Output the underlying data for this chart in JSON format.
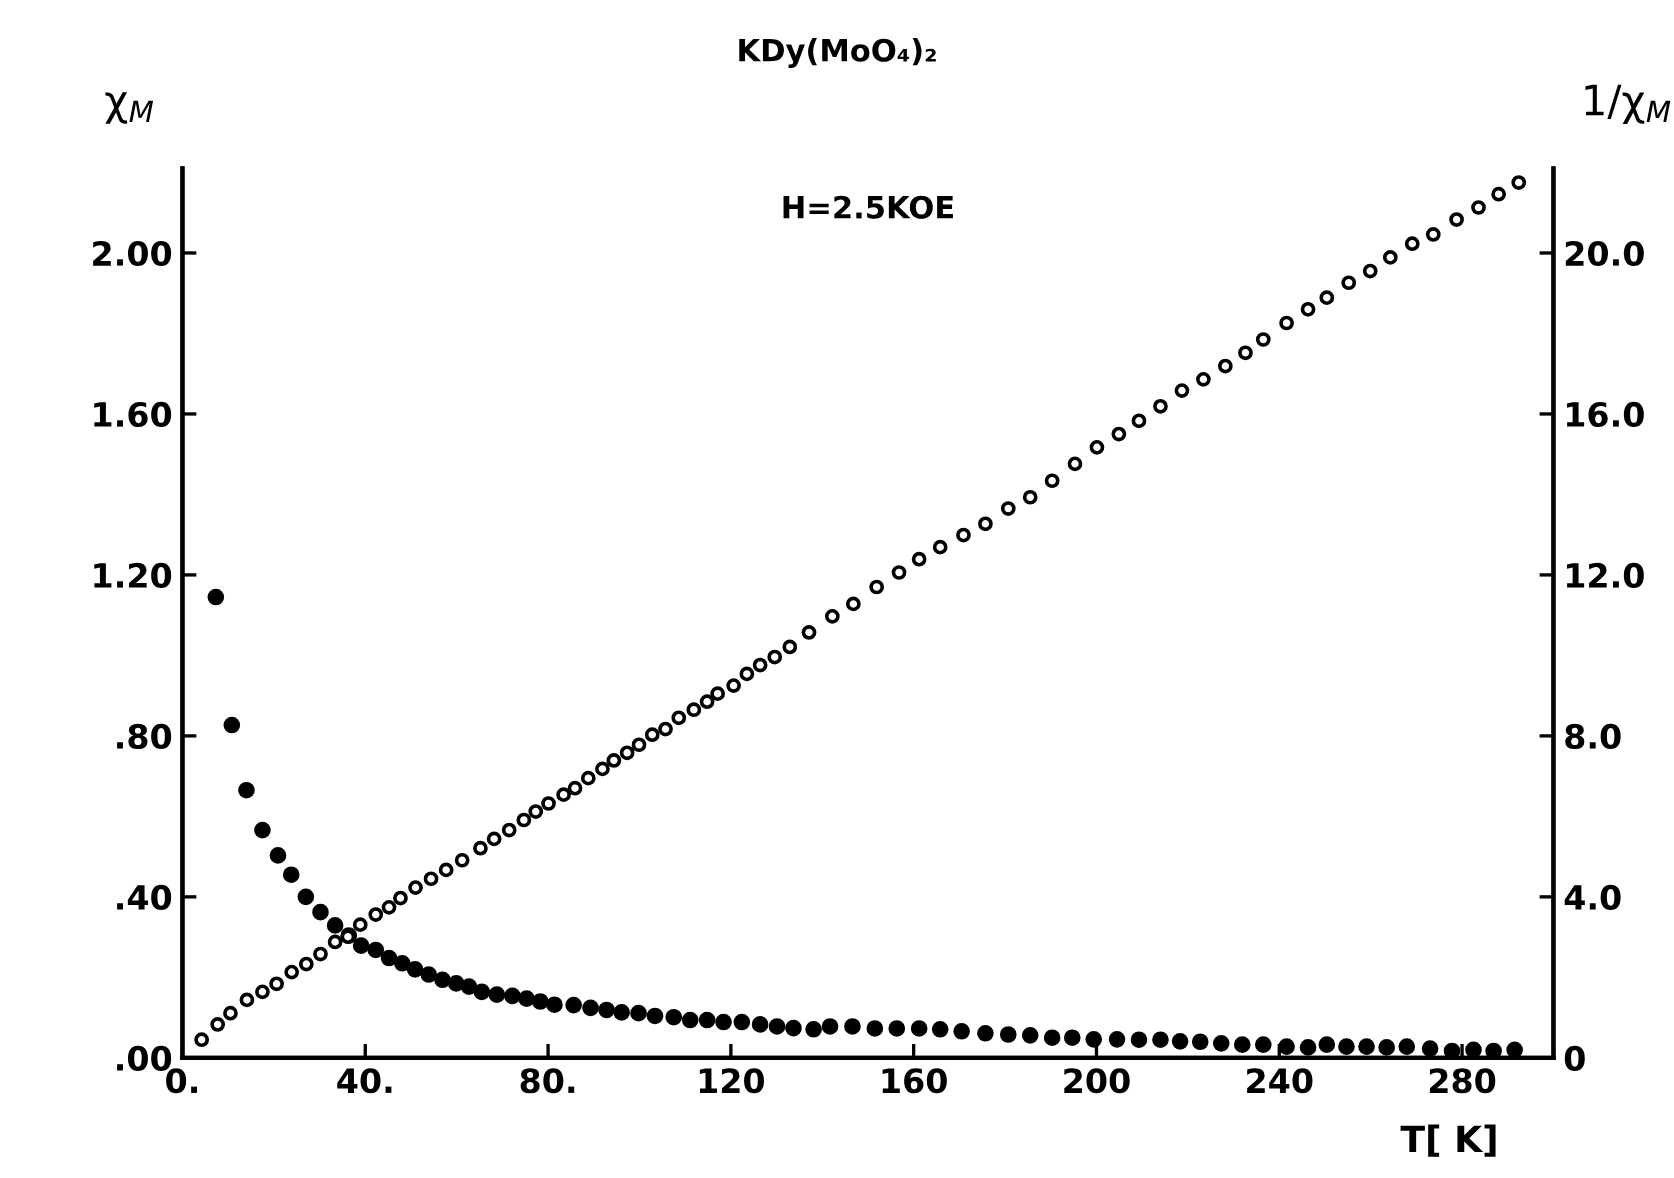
{
  "chart_data": {
    "type": "scatter",
    "title": "KDy(MoO₄)₂",
    "xlabel": "T[ K]",
    "ylabel": "χ$_{M}$",
    "y2label": "1/χ$_{M}$",
    "annotations": [
      "H=2.5KOE"
    ],
    "xlim": [
      0,
      300
    ],
    "xticks": [
      {
        "value": 0,
        "label": "0."
      },
      {
        "value": 40,
        "label": "40."
      },
      {
        "value": 80,
        "label": "80."
      },
      120,
      160,
      200,
      240,
      280
    ],
    "ylim": [
      0,
      2.21
    ],
    "yticks": [
      {
        "value": 0,
        "label": ".00"
      },
      {
        "value": 0.4,
        "label": ".40"
      },
      {
        "value": 0.8,
        "label": ".80"
      },
      {
        "value": 1.2,
        "label": "1.20"
      },
      {
        "value": 1.6,
        "label": "1.60"
      },
      {
        "value": 2.0,
        "label": "2.00"
      }
    ],
    "y2lim": [
      0,
      22.1
    ],
    "y2ticks": [
      0,
      {
        "value": 4,
        "label": "4.0"
      },
      {
        "value": 8,
        "label": "8.0"
      },
      {
        "value": 12,
        "label": "12.0"
      },
      {
        "value": 16,
        "label": "16.0"
      },
      {
        "value": 20,
        "label": "20.0"
      }
    ],
    "marker": "circle",
    "grid": false,
    "legend": false,
    "series": [
      {
        "color": "#000000",
        "axis": "y",
        "x": [
          7.3,
          10.8,
          14.0,
          17.5,
          20.9,
          23.8,
          27.0,
          30.2,
          33.4,
          36.4,
          39.1,
          42.3,
          45.2,
          48.1,
          50.9,
          53.9,
          56.9,
          59.9,
          62.7,
          65.5,
          68.8,
          72.2,
          75.3,
          78.3,
          81.4,
          85.6,
          89.3,
          92.8,
          96.1,
          99.8,
          103.4,
          107.5,
          111.1,
          114.8,
          118.4,
          122.4,
          126.4,
          130.1,
          133.7,
          138.1,
          141.7,
          146.6,
          151.5,
          156.3,
          161.2,
          165.8,
          170.5,
          175.7,
          180.7,
          185.5,
          190.3,
          194.7,
          199.4,
          204.5,
          209.3,
          214.0,
          218.3,
          222.7,
          227.3,
          231.9,
          236.5,
          241.6,
          246.3,
          250.4,
          254.7,
          259.1,
          263.5,
          267.9,
          273.0,
          277.8,
          282.5,
          286.9,
          291.5
        ],
        "values": [
          1.145,
          0.827,
          0.665,
          0.566,
          0.503,
          0.455,
          0.4,
          0.362,
          0.329,
          0.304,
          0.279,
          0.268,
          0.248,
          0.235,
          0.22,
          0.207,
          0.194,
          0.185,
          0.177,
          0.164,
          0.157,
          0.154,
          0.147,
          0.14,
          0.132,
          0.131,
          0.124,
          0.119,
          0.113,
          0.111,
          0.104,
          0.101,
          0.094,
          0.094,
          0.089,
          0.089,
          0.083,
          0.078,
          0.074,
          0.071,
          0.078,
          0.078,
          0.073,
          0.073,
          0.073,
          0.071,
          0.066,
          0.061,
          0.058,
          0.056,
          0.05,
          0.05,
          0.046,
          0.046,
          0.045,
          0.045,
          0.041,
          0.04,
          0.036,
          0.033,
          0.033,
          0.028,
          0.026,
          0.033,
          0.028,
          0.028,
          0.026,
          0.028,
          0.023,
          0.017,
          0.02,
          0.017,
          0.02
        ]
      },
      {
        "color": "#000000",
        "axis": "y2",
        "x": [
          4.2,
          7.7,
          10.5,
          14.1,
          17.5,
          20.6,
          23.9,
          27.1,
          30.2,
          33.4,
          36.2,
          38.9,
          42.3,
          45.2,
          47.7,
          51.0,
          54.4,
          57.7,
          61.2,
          65.2,
          68.2,
          71.5,
          74.7,
          77.3,
          80.1,
          83.4,
          85.9,
          88.8,
          91.9,
          94.4,
          97.3,
          99.9,
          102.8,
          105.7,
          108.6,
          111.9,
          114.8,
          117.1,
          120.6,
          123.5,
          126.4,
          129.6,
          132.9,
          137.1,
          142.2,
          146.8,
          151.9,
          156.8,
          161.2,
          165.8,
          170.9,
          175.7,
          180.7,
          185.5,
          190.3,
          195.3,
          200.1,
          204.9,
          209.3,
          214.0,
          218.7,
          223.4,
          228.2,
          232.6,
          236.5,
          241.6,
          246.3,
          250.4,
          255.2,
          259.9,
          264.3,
          269.1,
          273.7,
          278.8,
          283.6,
          288.0,
          292.4
        ],
        "values": [
          0.45,
          0.83,
          1.11,
          1.44,
          1.64,
          1.84,
          2.13,
          2.33,
          2.58,
          2.88,
          3.01,
          3.31,
          3.56,
          3.74,
          3.97,
          4.23,
          4.45,
          4.67,
          4.91,
          5.21,
          5.44,
          5.66,
          5.91,
          6.12,
          6.32,
          6.54,
          6.7,
          6.95,
          7.18,
          7.39,
          7.58,
          7.78,
          8.03,
          8.17,
          8.45,
          8.65,
          8.85,
          9.05,
          9.25,
          9.54,
          9.76,
          9.96,
          10.21,
          10.57,
          10.97,
          11.28,
          11.7,
          12.06,
          12.39,
          12.69,
          12.99,
          13.27,
          13.65,
          13.93,
          14.34,
          14.76,
          15.17,
          15.5,
          15.83,
          16.19,
          16.58,
          16.86,
          17.19,
          17.52,
          17.85,
          18.26,
          18.6,
          18.89,
          19.26,
          19.55,
          19.89,
          20.23,
          20.46,
          20.83,
          21.13,
          21.46,
          21.75
        ]
      }
    ]
  }
}
